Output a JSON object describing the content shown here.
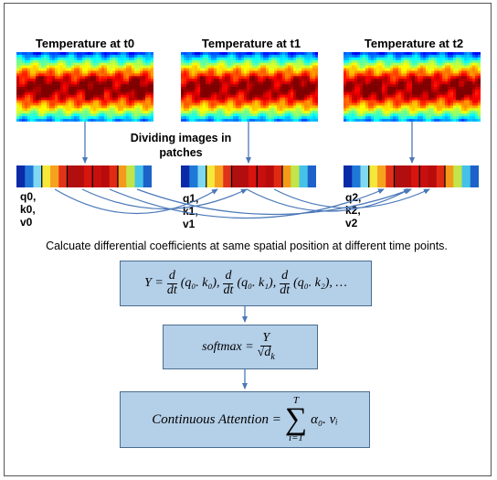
{
  "heatmaps": [
    {
      "title": "Temperature at t0"
    },
    {
      "title": "Temperature at t1"
    },
    {
      "title": "Temperature at t2"
    }
  ],
  "strip_colors": [
    "#0a2aa8",
    "#1f78d8",
    "#7fd8f0",
    "#f5e83a",
    "#f7a21f",
    "#e2321a",
    "#b00f0f",
    "#b30d0d",
    "#d8140f",
    "#c80f10",
    "#b80c0c",
    "#e02a12",
    "#f39a1a",
    "#c2e54a",
    "#45c2e8",
    "#1d62c9"
  ],
  "qkv_labels": [
    {
      "lines": [
        "q0,",
        "k0,",
        "v0"
      ]
    },
    {
      "lines": [
        "q1,",
        "k1,",
        "v1"
      ]
    },
    {
      "lines": [
        "q2,",
        "k2,",
        "v2"
      ]
    }
  ],
  "divide_label": "Dividing images in patches",
  "caption": "Calcuate differential coefficients at same spatial position at different time points.",
  "equations": {
    "y_eq": {
      "lhs": "Y =",
      "d": "d",
      "dt": "dt",
      "t1": "(q₀. k₀),",
      "t2": "(q₀. k₁),",
      "t3": "(q₀. k₂), …"
    },
    "softmax_eq": {
      "lhs": "softmax =",
      "num": "Y",
      "den": "√d",
      "den_sub": "k"
    },
    "attention_eq": {
      "lhs": "Continuous Attention =",
      "upper": "T",
      "lower": "i=1",
      "term": "α₀. vᵢ"
    }
  },
  "colors": {
    "box_fill": "#b4cfe8",
    "box_border": "#4a6d90",
    "arrow": "#4a78b8"
  }
}
